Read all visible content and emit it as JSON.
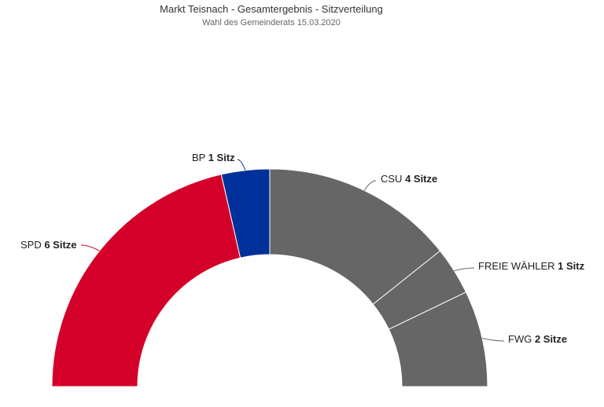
{
  "chart_data": {
    "type": "pie",
    "variant": "half-donut (parliament seat distribution)",
    "title": "Markt Teisnach - Gesamtergebnis - Sitzverteilung",
    "subtitle": "Wahl des Gemeinderats 15.03.2020",
    "seat_suffix_singular": "Sitz",
    "seat_suffix_plural": "Sitze",
    "slices": [
      {
        "name": "SPD",
        "seats": 6,
        "seats_label": "6 Sitze",
        "color": "#d50029"
      },
      {
        "name": "BP",
        "seats": 1,
        "seats_label": "1 Sitz",
        "color": "#00309a"
      },
      {
        "name": "CSU",
        "seats": 4,
        "seats_label": "4 Sitze",
        "color": "#666666"
      },
      {
        "name": "FREIE WÄHLER",
        "seats": 1,
        "seats_label": "1 Sitz",
        "color": "#666666"
      },
      {
        "name": "FWG",
        "seats": 2,
        "seats_label": "2 Sitze",
        "color": "#666666"
      }
    ],
    "total_seats": 14,
    "legend": "none"
  }
}
